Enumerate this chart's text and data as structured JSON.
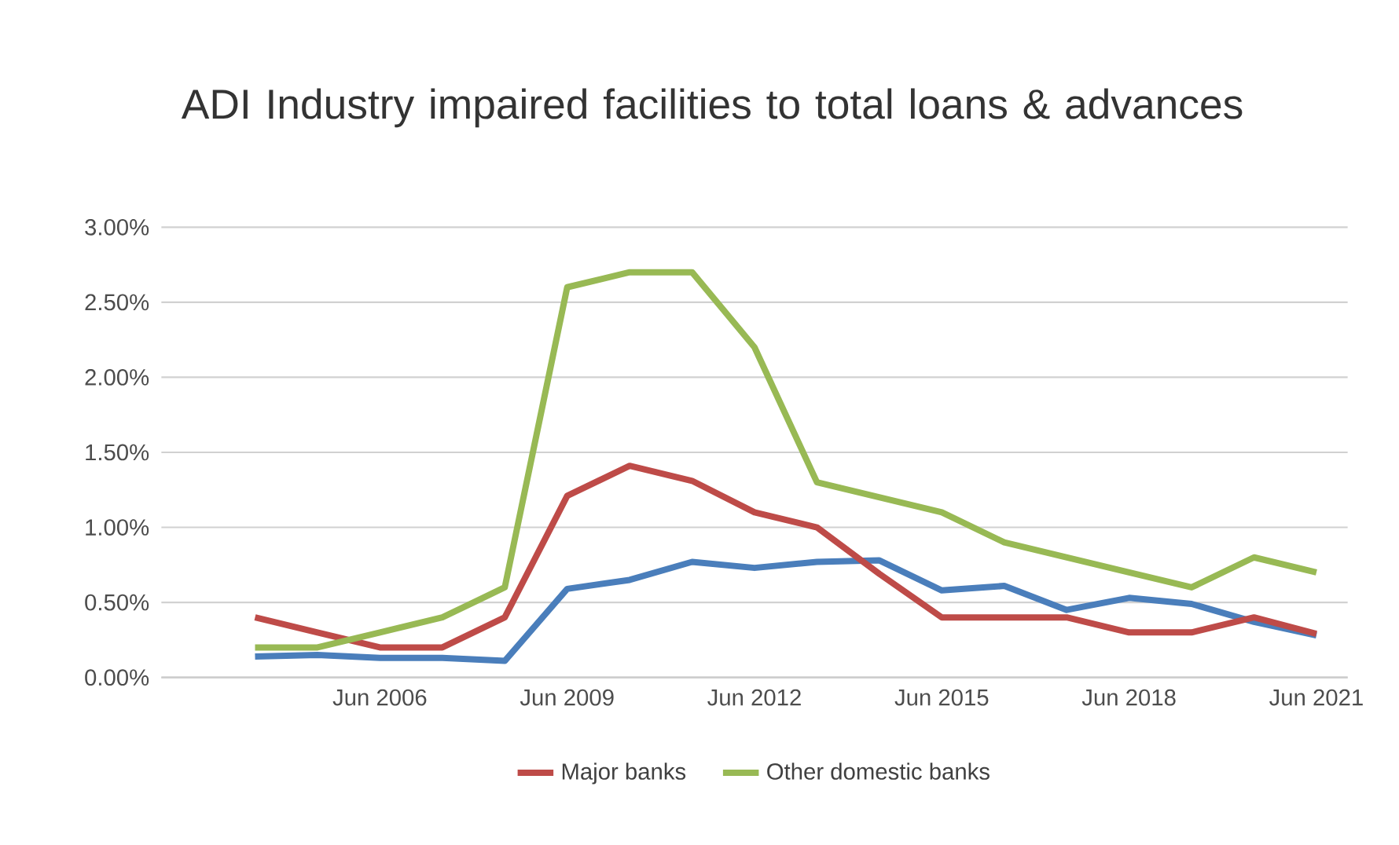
{
  "chart_data": {
    "type": "line",
    "title": "ADI Industry impaired facilities to total loans & advances",
    "categories": [
      null,
      null,
      "Jun 2006",
      null,
      null,
      "Jun 2009",
      null,
      null,
      "Jun 2012",
      null,
      null,
      "Jun 2015",
      null,
      null,
      "Jun 2018",
      null,
      null,
      "Jun 2021"
    ],
    "series": [
      {
        "color": "#4a7ebb",
        "values": [
          0.14,
          0.15,
          0.13,
          0.13,
          0.11,
          0.59,
          0.65,
          0.77,
          0.73,
          0.77,
          0.78,
          0.58,
          0.61,
          0.45,
          0.53,
          0.49,
          0.37,
          0.28
        ]
      },
      {
        "name": "Major banks",
        "color": "#be4b48",
        "values": [
          0.4,
          0.3,
          0.2,
          0.2,
          0.4,
          1.21,
          1.41,
          1.31,
          1.1,
          1.0,
          0.69,
          0.4,
          0.4,
          0.4,
          0.3,
          0.3,
          0.4,
          0.29
        ]
      },
      {
        "name": "Other domestic banks",
        "color": "#98b954",
        "values": [
          0.2,
          0.2,
          0.3,
          0.4,
          0.6,
          2.6,
          2.7,
          2.7,
          2.2,
          1.3,
          1.2,
          1.1,
          0.9,
          0.8,
          0.7,
          0.6,
          0.8,
          0.7
        ]
      }
    ],
    "ylim": [
      0,
      3
    ],
    "yticks": [
      {
        "value": 0,
        "label": "0.00%"
      },
      {
        "value": 0.5,
        "label": "0.50%"
      },
      {
        "value": 1,
        "label": "1.00%"
      },
      {
        "value": 1.5,
        "label": "1.50%"
      },
      {
        "value": 2,
        "label": "2.00%"
      },
      {
        "value": 2.5,
        "label": "2.50%"
      },
      {
        "value": 3,
        "label": "3.00%"
      }
    ],
    "grid": "y",
    "legend": "bottom",
    "marker": "none",
    "line_style": "solid"
  }
}
